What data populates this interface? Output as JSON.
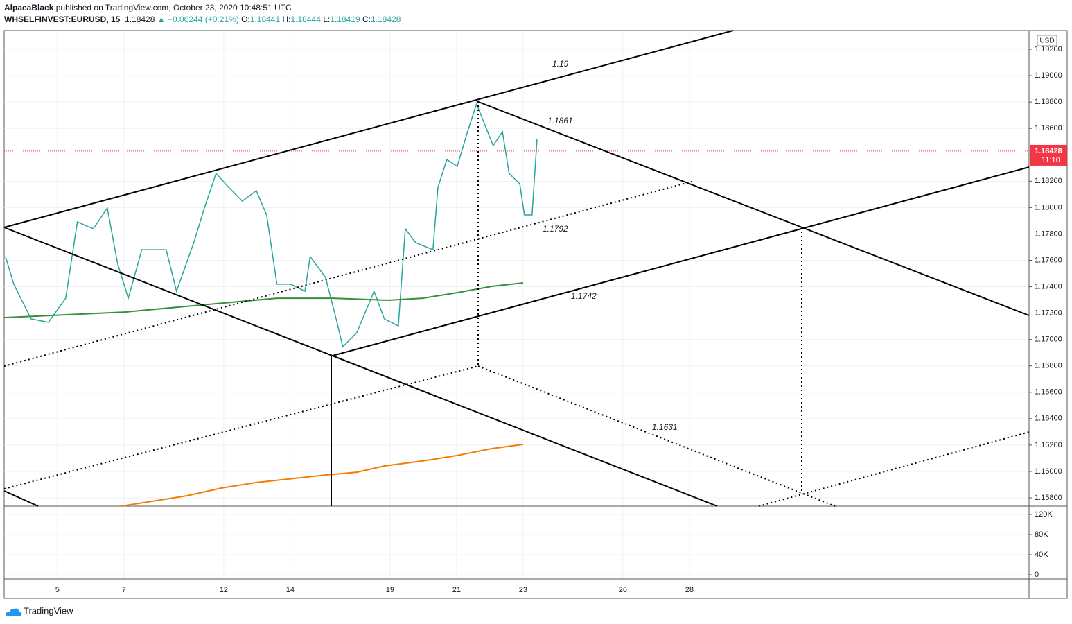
{
  "header": {
    "author": "AlpacaBlack",
    "published": "published on TradingView.com, October 23, 2020 10:48:51 UTC",
    "symbol": "WHSELFINVEST:EURUSD, 15",
    "last": "1.18428",
    "arrow": "▲",
    "change": "+0.00244 (+0.21%)",
    "ohlc": [
      {
        "label": "O:",
        "value": "1.18441"
      },
      {
        "label": "H:",
        "value": "1.18444"
      },
      {
        "label": "L:",
        "value": "1.18419"
      },
      {
        "label": "C:",
        "value": "1.18428"
      }
    ]
  },
  "chart_data": [
    {
      "type": "line",
      "currency": "USD",
      "grid": true,
      "xlim": [
        -1.6,
        29.21
      ],
      "ylim": [
        1.15737,
        1.19342
      ],
      "xticks": [
        {
          "value": 0,
          "label": "5"
        },
        {
          "value": 2,
          "label": "7"
        },
        {
          "value": 5,
          "label": "12"
        },
        {
          "value": 7,
          "label": "14"
        },
        {
          "value": 10,
          "label": "19"
        },
        {
          "value": 12,
          "label": "21"
        },
        {
          "value": 14,
          "label": "23"
        },
        {
          "value": 17,
          "label": "26"
        },
        {
          "value": 19,
          "label": "28"
        }
      ],
      "yticks": [
        {
          "value": 1.158,
          "label": "1.15800"
        },
        {
          "value": 1.16,
          "label": "1.16000"
        },
        {
          "value": 1.162,
          "label": "1.16200"
        },
        {
          "value": 1.164,
          "label": "1.16400"
        },
        {
          "value": 1.166,
          "label": "1.16600"
        },
        {
          "value": 1.168,
          "label": "1.16800"
        },
        {
          "value": 1.17,
          "label": "1.17000"
        },
        {
          "value": 1.172,
          "label": "1.17200"
        },
        {
          "value": 1.174,
          "label": "1.17400"
        },
        {
          "value": 1.176,
          "label": "1.17600"
        },
        {
          "value": 1.178,
          "label": "1.17800"
        },
        {
          "value": 1.18,
          "label": "1.18000"
        },
        {
          "value": 1.182,
          "label": "1.18200"
        },
        {
          "value": 1.184,
          "label": "1.18400"
        },
        {
          "value": 1.186,
          "label": "1.18600"
        },
        {
          "value": 1.188,
          "label": "1.18800"
        },
        {
          "value": 1.19,
          "label": "1.19000"
        },
        {
          "value": 1.192,
          "label": "1.19200"
        }
      ],
      "series": [
        {
          "color": "#26a69a",
          "x": [
            -1.56,
            -1.31,
            -0.79,
            -0.27,
            0.25,
            0.6,
            1.08,
            1.5,
            1.81,
            2.13,
            2.54,
            3.27,
            3.58,
            4.1,
            4.42,
            4.77,
            5.15,
            5.56,
            5.98,
            6.29,
            6.6,
            7.02,
            7.44,
            7.6,
            8.06,
            8.38,
            8.58,
            9.0,
            9.52,
            9.83,
            10.25,
            10.46,
            10.77,
            11.29,
            11.44,
            11.71,
            12.02,
            12.33,
            12.6,
            12.85,
            13.1,
            13.38,
            13.58,
            13.9,
            14.04,
            14.27,
            14.42
          ],
          "values": [
            1.17629,
            1.17419,
            1.17156,
            1.1713,
            1.17313,
            1.17891,
            1.17839,
            1.17997,
            1.17576,
            1.17313,
            1.17681,
            1.17681,
            1.17366,
            1.17734,
            1.17997,
            1.18259,
            1.18154,
            1.18049,
            1.18128,
            1.17944,
            1.17419,
            1.17419,
            1.17366,
            1.17629,
            1.17471,
            1.17156,
            1.16945,
            1.17051,
            1.17366,
            1.17156,
            1.17103,
            1.17839,
            1.17734,
            1.17681,
            1.18154,
            1.18364,
            1.18312,
            1.18575,
            1.18785,
            1.18627,
            1.1847,
            1.18575,
            1.18259,
            1.1818,
            1.17944,
            1.17944,
            1.18522
          ]
        },
        {
          "color": "#388e3c",
          "x": [
            -1.6,
            2.02,
            4.31,
            6.6,
            8.27,
            9.94,
            10.98,
            12.02,
            13.06,
            14.0
          ],
          "values": [
            1.17166,
            1.17208,
            1.17261,
            1.17313,
            1.17313,
            1.17298,
            1.17313,
            1.17355,
            1.17403,
            1.17429
          ]
        },
        {
          "color": "#f57c00",
          "x": [
            1.92,
            3.9,
            4.94,
            5.98,
            8.06,
            9.0,
            9.83,
            10.98,
            12.02,
            13.06,
            14.0
          ],
          "values": [
            1.15737,
            1.15816,
            1.15874,
            1.15916,
            1.15973,
            1.15994,
            1.16042,
            1.16079,
            1.16121,
            1.16173,
            1.16205
          ]
        }
      ],
      "last_price": {
        "value": 1.18428,
        "label": "1.18428",
        "countdown": "11:10",
        "color": "#f23645"
      },
      "annotations": [
        "1.19",
        "1.1861",
        "1.1792",
        "1.1742",
        "1.1631"
      ]
    },
    {
      "type": "bar",
      "ylim": [
        -8276,
        136552
      ],
      "yticks": [
        {
          "value": 120000,
          "label": "120K"
        },
        {
          "value": 80000,
          "label": "80K"
        },
        {
          "value": 40000,
          "label": "40K"
        },
        {
          "value": 0,
          "label": "0"
        }
      ]
    }
  ],
  "footer": {
    "brand": "TradingView"
  }
}
